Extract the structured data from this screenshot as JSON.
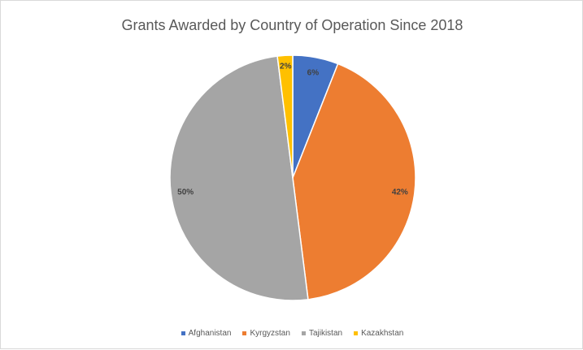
{
  "chart_data": {
    "type": "pie",
    "title": "Grants Awarded by Country of Operation Since 2018",
    "categories": [
      "Afghanistan",
      "Kyrgyzstan",
      "Tajikistan",
      "Kazakhstan"
    ],
    "values": [
      6,
      42,
      50,
      2
    ],
    "labels": [
      "6%",
      "42%",
      "50%",
      "2%"
    ],
    "colors": [
      "#4472c4",
      "#ed7d31",
      "#a5a5a5",
      "#ffc000"
    ],
    "legend_position": "bottom"
  }
}
